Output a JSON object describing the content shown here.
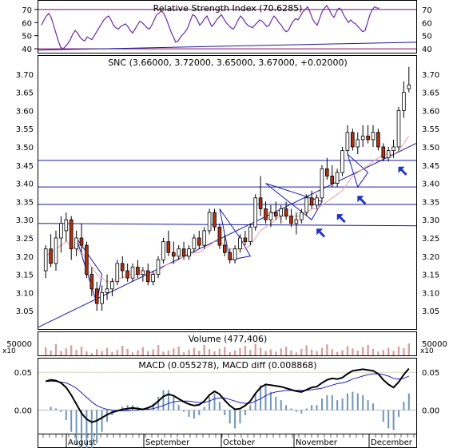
{
  "colors": {
    "frame": "#000000",
    "grid": "#c8c8c8",
    "blue_line": "#1a1aa8",
    "rsi_line": "#6a2aa6",
    "rsi_level": "#800060",
    "candle_down": "#b03010",
    "candle_up": "#ffffff",
    "ma_line": "#f0a0a0",
    "volume_bar": "#d9a0a0",
    "macd_line": "#000000",
    "signal_line": "#2020c0",
    "hist_bar": "#6f95b8",
    "arrow": "#1e32c8",
    "zero_line": "#a0a0a0"
  },
  "chart_data": [
    {
      "type": "line",
      "title": "Relative Strength Index (70.6285)",
      "y_ticks": [
        40,
        50,
        60,
        70
      ],
      "ylim": [
        37,
        76
      ],
      "levels": [
        70,
        40
      ],
      "series": [
        {
          "x": [
            0,
            3,
            6,
            9,
            12,
            15,
            18,
            21,
            24,
            27,
            30,
            33,
            36,
            39,
            42,
            45,
            48,
            51,
            54,
            57,
            60,
            63,
            66,
            69,
            72,
            75,
            78,
            81,
            84,
            87,
            90,
            93,
            96,
            99,
            102,
            105,
            108,
            111,
            114,
            117,
            120,
            123,
            126,
            129,
            132,
            135,
            138,
            141,
            144,
            147,
            150,
            153,
            156,
            159,
            162,
            165,
            168,
            171,
            174,
            177,
            180,
            183,
            186,
            189,
            192,
            195,
            198,
            201,
            204,
            207,
            210,
            213,
            216,
            219,
            222,
            225,
            228,
            231,
            234,
            237,
            240,
            243,
            246,
            249,
            252,
            255,
            258,
            261,
            264,
            267,
            270,
            273,
            276,
            279,
            282,
            285,
            288,
            291,
            294,
            297,
            300,
            303,
            306,
            309,
            312,
            315,
            318,
            321,
            324,
            327,
            330,
            333,
            336,
            339,
            342,
            345,
            348,
            351,
            354,
            357,
            360,
            363,
            366,
            369,
            372,
            375,
            378,
            381,
            384,
            387,
            390,
            393,
            396,
            399,
            402,
            405,
            408,
            411,
            414,
            417,
            420,
            423
          ],
          "values": [
            58,
            62,
            65,
            67,
            64,
            58,
            52,
            46,
            41,
            40,
            42,
            44,
            47,
            51,
            54,
            52,
            49,
            47,
            46,
            49,
            48,
            47,
            50,
            53,
            56,
            59,
            62,
            64,
            65,
            62,
            58,
            56,
            55,
            57,
            58,
            59,
            57,
            54,
            52,
            55,
            58,
            61,
            60,
            58,
            56,
            55,
            58,
            62,
            66,
            67,
            69,
            67,
            63,
            58,
            53,
            49,
            45,
            46,
            49,
            51,
            53,
            56,
            61,
            66,
            65,
            62,
            58,
            60,
            63,
            65,
            61,
            57,
            59,
            62,
            64,
            66,
            63,
            60,
            58,
            56,
            55,
            58,
            62,
            65,
            63,
            60,
            58,
            57,
            56,
            58,
            60,
            62,
            61,
            59,
            57,
            58,
            62,
            65,
            63,
            60,
            58,
            55,
            53,
            54,
            58,
            61,
            63,
            62,
            65,
            68,
            70,
            72,
            68,
            63,
            60,
            58,
            63,
            68,
            71,
            73,
            70,
            66,
            64,
            68,
            71,
            70,
            66,
            63,
            60,
            62,
            60,
            59,
            57,
            55,
            53,
            54,
            60,
            66,
            70,
            72,
            71,
            71
          ]
        }
      ]
    },
    {
      "type": "candlestick",
      "title": "SNC (3.66000, 3.72000, 3.65000, 3.67000, +0.02000)",
      "y_ticks": [
        3.05,
        3.1,
        3.15,
        3.2,
        3.25,
        3.3,
        3.35,
        3.4,
        3.45,
        3.5,
        3.55,
        3.6,
        3.65,
        3.7
      ],
      "ylim": [
        3.0,
        3.75
      ],
      "x_labels": [
        "August",
        "September",
        "October",
        "November",
        "December"
      ],
      "x_label_positions": [
        17,
        114,
        211,
        302,
        396
      ],
      "candles": [
        {
          "o": 3.16,
          "h": 3.23,
          "l": 3.14,
          "c": 3.22
        },
        {
          "o": 3.22,
          "h": 3.26,
          "l": 3.17,
          "c": 3.18
        },
        {
          "o": 3.18,
          "h": 3.27,
          "l": 3.16,
          "c": 3.25
        },
        {
          "o": 3.25,
          "h": 3.31,
          "l": 3.21,
          "c": 3.29
        },
        {
          "o": 3.27,
          "h": 3.32,
          "l": 3.24,
          "c": 3.3
        },
        {
          "o": 3.3,
          "h": 3.31,
          "l": 3.19,
          "c": 3.22
        },
        {
          "o": 3.22,
          "h": 3.27,
          "l": 3.2,
          "c": 3.25
        },
        {
          "o": 3.25,
          "h": 3.29,
          "l": 3.21,
          "c": 3.23
        },
        {
          "o": 3.23,
          "h": 3.24,
          "l": 3.14,
          "c": 3.15
        },
        {
          "o": 3.15,
          "h": 3.17,
          "l": 3.09,
          "c": 3.11
        },
        {
          "o": 3.11,
          "h": 3.13,
          "l": 3.05,
          "c": 3.07
        },
        {
          "o": 3.07,
          "h": 3.12,
          "l": 3.05,
          "c": 3.1
        },
        {
          "o": 3.1,
          "h": 3.15,
          "l": 3.08,
          "c": 3.11
        },
        {
          "o": 3.11,
          "h": 3.14,
          "l": 3.09,
          "c": 3.13
        },
        {
          "o": 3.13,
          "h": 3.19,
          "l": 3.12,
          "c": 3.18
        },
        {
          "o": 3.18,
          "h": 3.2,
          "l": 3.14,
          "c": 3.16
        },
        {
          "o": 3.16,
          "h": 3.18,
          "l": 3.13,
          "c": 3.14
        },
        {
          "o": 3.14,
          "h": 3.18,
          "l": 3.13,
          "c": 3.17
        },
        {
          "o": 3.17,
          "h": 3.19,
          "l": 3.14,
          "c": 3.15
        },
        {
          "o": 3.15,
          "h": 3.17,
          "l": 3.13,
          "c": 3.16
        },
        {
          "o": 3.16,
          "h": 3.18,
          "l": 3.12,
          "c": 3.13
        },
        {
          "o": 3.13,
          "h": 3.16,
          "l": 3.12,
          "c": 3.15
        },
        {
          "o": 3.15,
          "h": 3.2,
          "l": 3.14,
          "c": 3.19
        },
        {
          "o": 3.19,
          "h": 3.25,
          "l": 3.18,
          "c": 3.24
        },
        {
          "o": 3.24,
          "h": 3.27,
          "l": 3.2,
          "c": 3.21
        },
        {
          "o": 3.21,
          "h": 3.24,
          "l": 3.18,
          "c": 3.2
        },
        {
          "o": 3.2,
          "h": 3.23,
          "l": 3.19,
          "c": 3.22
        },
        {
          "o": 3.22,
          "h": 3.24,
          "l": 3.19,
          "c": 3.2
        },
        {
          "o": 3.2,
          "h": 3.23,
          "l": 3.19,
          "c": 3.22
        },
        {
          "o": 3.22,
          "h": 3.26,
          "l": 3.21,
          "c": 3.25
        },
        {
          "o": 3.25,
          "h": 3.27,
          "l": 3.22,
          "c": 3.23
        },
        {
          "o": 3.23,
          "h": 3.28,
          "l": 3.22,
          "c": 3.27
        },
        {
          "o": 3.27,
          "h": 3.33,
          "l": 3.26,
          "c": 3.32
        },
        {
          "o": 3.32,
          "h": 3.33,
          "l": 3.27,
          "c": 3.28
        },
        {
          "o": 3.28,
          "h": 3.29,
          "l": 3.22,
          "c": 3.23
        },
        {
          "o": 3.23,
          "h": 3.26,
          "l": 3.2,
          "c": 3.21
        },
        {
          "o": 3.21,
          "h": 3.22,
          "l": 3.18,
          "c": 3.19
        },
        {
          "o": 3.19,
          "h": 3.23,
          "l": 3.18,
          "c": 3.22
        },
        {
          "o": 3.22,
          "h": 3.26,
          "l": 3.21,
          "c": 3.25
        },
        {
          "o": 3.25,
          "h": 3.27,
          "l": 3.23,
          "c": 3.24
        },
        {
          "o": 3.24,
          "h": 3.29,
          "l": 3.23,
          "c": 3.28
        },
        {
          "o": 3.28,
          "h": 3.37,
          "l": 3.27,
          "c": 3.36
        },
        {
          "o": 3.36,
          "h": 3.42,
          "l": 3.31,
          "c": 3.33
        },
        {
          "o": 3.33,
          "h": 3.35,
          "l": 3.29,
          "c": 3.3
        },
        {
          "o": 3.3,
          "h": 3.34,
          "l": 3.28,
          "c": 3.32
        },
        {
          "o": 3.32,
          "h": 3.35,
          "l": 3.3,
          "c": 3.31
        },
        {
          "o": 3.31,
          "h": 3.34,
          "l": 3.29,
          "c": 3.33
        },
        {
          "o": 3.33,
          "h": 3.35,
          "l": 3.3,
          "c": 3.31
        },
        {
          "o": 3.31,
          "h": 3.33,
          "l": 3.28,
          "c": 3.29
        },
        {
          "o": 3.29,
          "h": 3.32,
          "l": 3.26,
          "c": 3.3
        },
        {
          "o": 3.3,
          "h": 3.33,
          "l": 3.29,
          "c": 3.32
        },
        {
          "o": 3.32,
          "h": 3.37,
          "l": 3.31,
          "c": 3.36
        },
        {
          "o": 3.36,
          "h": 3.38,
          "l": 3.33,
          "c": 3.34
        },
        {
          "o": 3.34,
          "h": 3.37,
          "l": 3.33,
          "c": 3.36
        },
        {
          "o": 3.36,
          "h": 3.45,
          "l": 3.35,
          "c": 3.44
        },
        {
          "o": 3.44,
          "h": 3.47,
          "l": 3.41,
          "c": 3.42
        },
        {
          "o": 3.42,
          "h": 3.45,
          "l": 3.39,
          "c": 3.4
        },
        {
          "o": 3.4,
          "h": 3.44,
          "l": 3.39,
          "c": 3.43
        },
        {
          "o": 3.43,
          "h": 3.5,
          "l": 3.42,
          "c": 3.49
        },
        {
          "o": 3.49,
          "h": 3.56,
          "l": 3.48,
          "c": 3.54
        },
        {
          "o": 3.54,
          "h": 3.55,
          "l": 3.49,
          "c": 3.5
        },
        {
          "o": 3.5,
          "h": 3.54,
          "l": 3.48,
          "c": 3.52
        },
        {
          "o": 3.52,
          "h": 3.56,
          "l": 3.5,
          "c": 3.53
        },
        {
          "o": 3.53,
          "h": 3.56,
          "l": 3.51,
          "c": 3.52
        },
        {
          "o": 3.52,
          "h": 3.56,
          "l": 3.5,
          "c": 3.54
        },
        {
          "o": 3.54,
          "h": 3.55,
          "l": 3.49,
          "c": 3.5
        },
        {
          "o": 3.5,
          "h": 3.51,
          "l": 3.46,
          "c": 3.47
        },
        {
          "o": 3.47,
          "h": 3.5,
          "l": 3.46,
          "c": 3.49
        },
        {
          "o": 3.49,
          "h": 3.52,
          "l": 3.47,
          "c": 3.5
        },
        {
          "o": 3.5,
          "h": 3.61,
          "l": 3.49,
          "c": 3.6
        },
        {
          "o": 3.6,
          "h": 3.68,
          "l": 3.58,
          "c": 3.65
        },
        {
          "o": 3.66,
          "h": 3.72,
          "l": 3.65,
          "c": 3.67
        }
      ],
      "moving_average": [
        3.2,
        3.21,
        3.22,
        3.23,
        3.24,
        3.23,
        3.22,
        3.21,
        3.19,
        3.17,
        3.15,
        3.14,
        3.13,
        3.13,
        3.14,
        3.14,
        3.15,
        3.15,
        3.15,
        3.15,
        3.15,
        3.15,
        3.16,
        3.17,
        3.18,
        3.18,
        3.19,
        3.2,
        3.2,
        3.21,
        3.21,
        3.22,
        3.23,
        3.24,
        3.24,
        3.23,
        3.22,
        3.22,
        3.22,
        3.22,
        3.23,
        3.25,
        3.27,
        3.28,
        3.29,
        3.3,
        3.31,
        3.31,
        3.31,
        3.31,
        3.31,
        3.32,
        3.33,
        3.33,
        3.34,
        3.35,
        3.36,
        3.37,
        3.38,
        3.4,
        3.42,
        3.43,
        3.44,
        3.45,
        3.46,
        3.47,
        3.48,
        3.48,
        3.48,
        3.49,
        3.51,
        3.53
      ]
    },
    {
      "type": "bar",
      "title": "Volume (477,406)",
      "y_ticks": [
        50000
      ],
      "multiplier_label": "x10",
      "values": [
        32,
        20,
        45,
        18,
        28,
        40,
        22,
        35,
        16,
        10,
        25,
        18,
        30,
        14,
        22,
        38,
        26,
        12,
        20,
        33,
        17,
        24,
        41,
        15,
        19,
        28,
        36,
        12,
        22,
        30,
        18,
        42,
        25,
        16,
        27,
        34,
        13,
        20,
        29,
        38,
        22,
        46,
        31,
        18,
        24,
        15,
        28,
        35,
        20,
        12,
        26,
        40,
        23,
        17,
        30,
        44,
        25,
        14,
        21,
        37,
        28,
        19,
        33,
        42,
        26,
        15,
        22,
        30,
        18,
        36,
        29,
        48
      ]
    },
    {
      "type": "line",
      "title": "MACD (0.055278), MACD diff (0.008868)",
      "y_ticks": [
        0.0,
        0.05
      ],
      "ylim": [
        -0.03,
        0.065
      ],
      "series": [
        {
          "name": "MACD",
          "values": [
            0.038,
            0.04,
            0.039,
            0.036,
            0.03,
            0.02,
            0.008,
            -0.004,
            -0.012,
            -0.016,
            -0.014,
            -0.01,
            -0.006,
            -0.003,
            -0.001,
            0.001,
            0.002,
            0.003,
            0.002,
            0.001,
            0.003,
            0.006,
            0.012,
            0.018,
            0.021,
            0.019,
            0.015,
            0.011,
            0.008,
            0.006,
            0.007,
            0.012,
            0.02,
            0.025,
            0.021,
            0.013,
            0.006,
            0.001,
            0.002,
            0.006,
            0.012,
            0.022,
            0.03,
            0.034,
            0.033,
            0.032,
            0.031,
            0.029,
            0.027,
            0.025,
            0.024,
            0.027,
            0.03,
            0.031,
            0.036,
            0.04,
            0.042,
            0.041,
            0.043,
            0.048,
            0.052,
            0.053,
            0.054,
            0.053,
            0.052,
            0.048,
            0.04,
            0.034,
            0.03,
            0.037,
            0.047,
            0.055
          ]
        },
        {
          "name": "Signal",
          "values": [
            0.038,
            0.038,
            0.038,
            0.037,
            0.036,
            0.033,
            0.029,
            0.023,
            0.017,
            0.011,
            0.006,
            0.003,
            0.001,
            0.0,
            -0.001,
            -0.001,
            -0.001,
            0.0,
            0.0,
            0.001,
            0.001,
            0.002,
            0.004,
            0.006,
            0.009,
            0.011,
            0.012,
            0.012,
            0.012,
            0.011,
            0.01,
            0.01,
            0.012,
            0.015,
            0.016,
            0.016,
            0.014,
            0.012,
            0.01,
            0.009,
            0.009,
            0.012,
            0.015,
            0.019,
            0.022,
            0.024,
            0.025,
            0.026,
            0.026,
            0.026,
            0.026,
            0.026,
            0.027,
            0.028,
            0.029,
            0.031,
            0.033,
            0.035,
            0.036,
            0.038,
            0.041,
            0.043,
            0.045,
            0.047,
            0.048,
            0.048,
            0.047,
            0.045,
            0.042,
            0.041,
            0.042,
            0.045
          ]
        }
      ]
    }
  ]
}
